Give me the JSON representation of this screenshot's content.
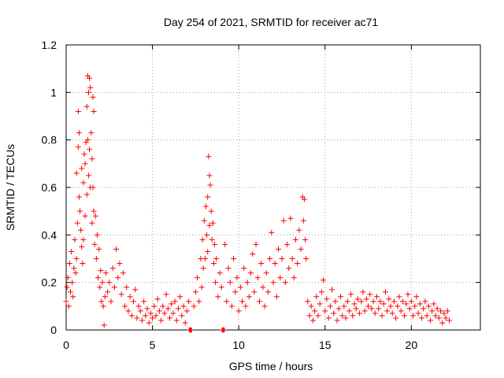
{
  "chart_data": {
    "type": "scatter",
    "title": "Day 254 of 2021, SRMTID for receiver ac71",
    "xlabel": "GPS time / hours",
    "ylabel": "SRMTID / TECUs",
    "xlim": [
      0,
      24
    ],
    "ylim": [
      0,
      1.2
    ],
    "xticks": [
      0,
      5,
      10,
      15,
      20
    ],
    "xtick_labels": [
      "0",
      "5",
      "10",
      "15",
      "20"
    ],
    "yticks": [
      0,
      0.2,
      0.4,
      0.6,
      0.8,
      1,
      1.2
    ],
    "ytick_labels": [
      "0",
      "0.2",
      "0.4",
      "0.6",
      "0.8",
      "1",
      "1.2"
    ],
    "grid": true,
    "marker": "+",
    "color": "#ff0000",
    "series": [
      {
        "name": "SRMTID",
        "points": [
          [
            0.0,
            0.12
          ],
          [
            0.05,
            0.18
          ],
          [
            0.1,
            0.22
          ],
          [
            0.15,
            0.1
          ],
          [
            0.2,
            0.28
          ],
          [
            0.25,
            0.16
          ],
          [
            0.3,
            0.33
          ],
          [
            0.35,
            0.2
          ],
          [
            0.4,
            0.14
          ],
          [
            0.45,
            0.26
          ],
          [
            0.5,
            0.38
          ],
          [
            0.55,
            0.24
          ],
          [
            0.6,
            0.66
          ],
          [
            0.6,
            0.3
          ],
          [
            0.65,
            0.45
          ],
          [
            0.7,
            0.77
          ],
          [
            0.7,
            0.92
          ],
          [
            0.75,
            0.83
          ],
          [
            0.75,
            0.56
          ],
          [
            0.8,
            0.5
          ],
          [
            0.85,
            0.42
          ],
          [
            0.9,
            0.35
          ],
          [
            0.9,
            0.68
          ],
          [
            0.95,
            0.28
          ],
          [
            1.0,
            0.62
          ],
          [
            1.0,
            0.38
          ],
          [
            1.05,
            0.74
          ],
          [
            1.1,
            0.7
          ],
          [
            1.1,
            0.48
          ],
          [
            1.15,
            0.79
          ],
          [
            1.2,
            0.94
          ],
          [
            1.2,
            0.57
          ],
          [
            1.25,
            1.07
          ],
          [
            1.25,
            0.8
          ],
          [
            1.3,
            1.0
          ],
          [
            1.3,
            0.65
          ],
          [
            1.35,
            1.06
          ],
          [
            1.35,
            0.76
          ],
          [
            1.4,
            1.02
          ],
          [
            1.4,
            0.6
          ],
          [
            1.45,
            0.83
          ],
          [
            1.5,
            0.72
          ],
          [
            1.5,
            0.45
          ],
          [
            1.55,
            0.98
          ],
          [
            1.55,
            0.6
          ],
          [
            1.6,
            0.92
          ],
          [
            1.6,
            0.5
          ],
          [
            1.65,
            0.36
          ],
          [
            1.7,
            0.48
          ],
          [
            1.75,
            0.3
          ],
          [
            1.8,
            0.4
          ],
          [
            1.85,
            0.22
          ],
          [
            1.9,
            0.34
          ],
          [
            1.95,
            0.18
          ],
          [
            2.0,
            0.25
          ],
          [
            2.05,
            0.12
          ],
          [
            2.1,
            0.2
          ],
          [
            2.15,
            0.1
          ],
          [
            2.2,
            0.02
          ],
          [
            2.25,
            0.14
          ],
          [
            2.3,
            0.24
          ],
          [
            2.4,
            0.16
          ],
          [
            2.5,
            0.2
          ],
          [
            2.6,
            0.12
          ],
          [
            2.7,
            0.26
          ],
          [
            2.8,
            0.18
          ],
          [
            2.9,
            0.34
          ],
          [
            3.0,
            0.22
          ],
          [
            3.1,
            0.28
          ],
          [
            3.2,
            0.15
          ],
          [
            3.3,
            0.24
          ],
          [
            3.4,
            0.1
          ],
          [
            3.5,
            0.18
          ],
          [
            3.6,
            0.08
          ],
          [
            3.7,
            0.14
          ],
          [
            3.8,
            0.06
          ],
          [
            3.9,
            0.12
          ],
          [
            4.0,
            0.17
          ],
          [
            4.1,
            0.05
          ],
          [
            4.2,
            0.1
          ],
          [
            4.3,
            0.08
          ],
          [
            4.4,
            0.04
          ],
          [
            4.5,
            0.12
          ],
          [
            4.6,
            0.06
          ],
          [
            4.7,
            0.09
          ],
          [
            4.8,
            0.03
          ],
          [
            4.9,
            0.07
          ],
          [
            5.0,
            0.05
          ],
          [
            5.1,
            0.1
          ],
          [
            5.2,
            0.06
          ],
          [
            5.3,
            0.13
          ],
          [
            5.4,
            0.08
          ],
          [
            5.5,
            0.04
          ],
          [
            5.6,
            0.1
          ],
          [
            5.7,
            0.07
          ],
          [
            5.8,
            0.15
          ],
          [
            5.9,
            0.09
          ],
          [
            6.0,
            0.05
          ],
          [
            6.1,
            0.11
          ],
          [
            6.2,
            0.07
          ],
          [
            6.3,
            0.12
          ],
          [
            6.4,
            0.04
          ],
          [
            6.5,
            0.09
          ],
          [
            6.6,
            0.14
          ],
          [
            6.7,
            0.06
          ],
          [
            6.8,
            0.1
          ],
          [
            6.9,
            0.03
          ],
          [
            7.0,
            0.08
          ],
          [
            7.1,
            0.12
          ],
          [
            7.2,
            0.0
          ],
          [
            7.4,
            0.1
          ],
          [
            7.5,
            0.16
          ],
          [
            7.6,
            0.22
          ],
          [
            7.7,
            0.12
          ],
          [
            7.8,
            0.3
          ],
          [
            7.85,
            0.18
          ],
          [
            7.9,
            0.38
          ],
          [
            7.95,
            0.26
          ],
          [
            8.0,
            0.46
          ],
          [
            8.05,
            0.3
          ],
          [
            8.1,
            0.52
          ],
          [
            8.15,
            0.4
          ],
          [
            8.2,
            0.56
          ],
          [
            8.2,
            0.33
          ],
          [
            8.25,
            0.73
          ],
          [
            8.3,
            0.65
          ],
          [
            8.3,
            0.44
          ],
          [
            8.35,
            0.61
          ],
          [
            8.4,
            0.5
          ],
          [
            8.45,
            0.38
          ],
          [
            8.5,
            0.45
          ],
          [
            8.55,
            0.28
          ],
          [
            8.6,
            0.36
          ],
          [
            8.65,
            0.2
          ],
          [
            8.7,
            0.3
          ],
          [
            8.8,
            0.14
          ],
          [
            8.9,
            0.24
          ],
          [
            9.0,
            0.18
          ],
          [
            9.1,
            0.0
          ],
          [
            9.2,
            0.36
          ],
          [
            9.3,
            0.12
          ],
          [
            9.4,
            0.26
          ],
          [
            9.5,
            0.2
          ],
          [
            9.6,
            0.1
          ],
          [
            9.7,
            0.3
          ],
          [
            9.8,
            0.16
          ],
          [
            9.9,
            0.22
          ],
          [
            10.0,
            0.08
          ],
          [
            10.1,
            0.18
          ],
          [
            10.2,
            0.12
          ],
          [
            10.3,
            0.26
          ],
          [
            10.4,
            0.1
          ],
          [
            10.5,
            0.2
          ],
          [
            10.6,
            0.14
          ],
          [
            10.7,
            0.24
          ],
          [
            10.8,
            0.32
          ],
          [
            10.9,
            0.16
          ],
          [
            11.0,
            0.36
          ],
          [
            11.1,
            0.22
          ],
          [
            11.2,
            0.12
          ],
          [
            11.3,
            0.28
          ],
          [
            11.4,
            0.18
          ],
          [
            11.5,
            0.1
          ],
          [
            11.6,
            0.24
          ],
          [
            11.7,
            0.16
          ],
          [
            11.8,
            0.3
          ],
          [
            11.9,
            0.41
          ],
          [
            12.0,
            0.2
          ],
          [
            12.1,
            0.28
          ],
          [
            12.2,
            0.14
          ],
          [
            12.3,
            0.34
          ],
          [
            12.4,
            0.22
          ],
          [
            12.5,
            0.3
          ],
          [
            12.6,
            0.46
          ],
          [
            12.7,
            0.2
          ],
          [
            12.8,
            0.36
          ],
          [
            12.9,
            0.26
          ],
          [
            13.0,
            0.47
          ],
          [
            13.1,
            0.3
          ],
          [
            13.2,
            0.22
          ],
          [
            13.3,
            0.38
          ],
          [
            13.4,
            0.28
          ],
          [
            13.5,
            0.42
          ],
          [
            13.6,
            0.34
          ],
          [
            13.7,
            0.56
          ],
          [
            13.75,
            0.46
          ],
          [
            13.8,
            0.55
          ],
          [
            13.85,
            0.38
          ],
          [
            13.9,
            0.3
          ],
          [
            14.0,
            0.12
          ],
          [
            14.1,
            0.06
          ],
          [
            14.2,
            0.1
          ],
          [
            14.3,
            0.04
          ],
          [
            14.4,
            0.08
          ],
          [
            14.5,
            0.14
          ],
          [
            14.6,
            0.06
          ],
          [
            14.7,
            0.11
          ],
          [
            14.8,
            0.16
          ],
          [
            14.9,
            0.21
          ],
          [
            15.0,
            0.08
          ],
          [
            15.1,
            0.13
          ],
          [
            15.2,
            0.05
          ],
          [
            15.3,
            0.1
          ],
          [
            15.4,
            0.17
          ],
          [
            15.5,
            0.07
          ],
          [
            15.6,
            0.12
          ],
          [
            15.7,
            0.04
          ],
          [
            15.8,
            0.09
          ],
          [
            15.9,
            0.14
          ],
          [
            16.0,
            0.06
          ],
          [
            16.1,
            0.1
          ],
          [
            16.2,
            0.05
          ],
          [
            16.3,
            0.12
          ],
          [
            16.4,
            0.08
          ],
          [
            16.5,
            0.15
          ],
          [
            16.6,
            0.06
          ],
          [
            16.7,
            0.11
          ],
          [
            16.8,
            0.09
          ],
          [
            16.9,
            0.13
          ],
          [
            17.0,
            0.07
          ],
          [
            17.1,
            0.12
          ],
          [
            17.2,
            0.16
          ],
          [
            17.3,
            0.08
          ],
          [
            17.4,
            0.13
          ],
          [
            17.5,
            0.1
          ],
          [
            17.6,
            0.15
          ],
          [
            17.7,
            0.09
          ],
          [
            17.8,
            0.12
          ],
          [
            17.9,
            0.07
          ],
          [
            18.0,
            0.14
          ],
          [
            18.1,
            0.09
          ],
          [
            18.2,
            0.12
          ],
          [
            18.3,
            0.06
          ],
          [
            18.4,
            0.11
          ],
          [
            18.5,
            0.16
          ],
          [
            18.6,
            0.08
          ],
          [
            18.7,
            0.13
          ],
          [
            18.8,
            0.1
          ],
          [
            18.9,
            0.07
          ],
          [
            19.0,
            0.12
          ],
          [
            19.1,
            0.05
          ],
          [
            19.2,
            0.1
          ],
          [
            19.3,
            0.14
          ],
          [
            19.4,
            0.08
          ],
          [
            19.5,
            0.12
          ],
          [
            19.6,
            0.06
          ],
          [
            19.7,
            0.11
          ],
          [
            19.8,
            0.15
          ],
          [
            19.9,
            0.09
          ],
          [
            20.0,
            0.12
          ],
          [
            20.1,
            0.06
          ],
          [
            20.2,
            0.1
          ],
          [
            20.3,
            0.14
          ],
          [
            20.4,
            0.07
          ],
          [
            20.5,
            0.11
          ],
          [
            20.6,
            0.05
          ],
          [
            20.7,
            0.09
          ],
          [
            20.8,
            0.12
          ],
          [
            20.9,
            0.06
          ],
          [
            21.0,
            0.1
          ],
          [
            21.1,
            0.04
          ],
          [
            21.2,
            0.08
          ],
          [
            21.3,
            0.11
          ],
          [
            21.4,
            0.06
          ],
          [
            21.5,
            0.09
          ],
          [
            21.6,
            0.05
          ],
          [
            21.7,
            0.08
          ],
          [
            21.8,
            0.03
          ],
          [
            21.9,
            0.07
          ],
          [
            22.0,
            0.05
          ],
          [
            22.1,
            0.08
          ],
          [
            22.2,
            0.04
          ]
        ]
      }
    ],
    "axis_markers": [
      {
        "x": 7.2,
        "y": 0
      },
      {
        "x": 9.1,
        "y": 0
      }
    ]
  }
}
